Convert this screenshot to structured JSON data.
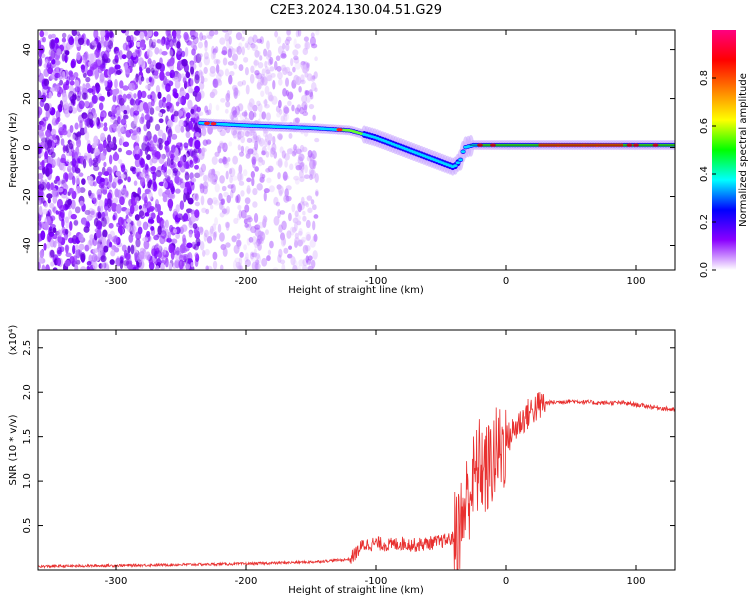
{
  "title": "C2E3.2024.130.04.51.G29",
  "chart_data": [
    {
      "type": "heatmap",
      "xlabel": "Height of straight line (km)",
      "ylabel": "Frequency (Hz)",
      "xlim": [
        -360,
        130
      ],
      "ylim": [
        -50,
        48
      ],
      "x_ticks": [
        -300,
        -200,
        -100,
        0,
        100
      ],
      "x_tick_labels": [
        "-300",
        "-200",
        "-100",
        "0",
        "100"
      ],
      "y_ticks": [
        -40,
        -20,
        0,
        20,
        40
      ],
      "y_tick_labels": [
        "-40",
        "-20",
        "0",
        "20",
        "40"
      ],
      "colorbar": {
        "label": "Normalized spectral amplitude",
        "range": [
          0,
          1
        ],
        "ticks": [
          0.0,
          0.2,
          0.4,
          0.6,
          0.8
        ],
        "tick_labels": [
          "0.0",
          "0.2",
          "0.4",
          "0.6",
          "0.8"
        ],
        "colormap": [
          "#ffffff",
          "#8a00ff",
          "#0000ff",
          "#00ffff",
          "#00ff00",
          "#ffff00",
          "#ff8000",
          "#ff0000",
          "#ff0080"
        ]
      },
      "ridge": {
        "x": [
          -235,
          -200,
          -150,
          -120,
          -100,
          -80,
          -60,
          -50,
          -40,
          -35,
          -32,
          -25,
          0,
          50,
          100,
          130
        ],
        "y": [
          10,
          9,
          8,
          7,
          4,
          0,
          -4,
          -6,
          -8,
          -5,
          0,
          1,
          1,
          1,
          1,
          1
        ]
      },
      "noise_regions": [
        {
          "x_range": [
            -360,
            -235
          ],
          "y_range": [
            -50,
            48
          ],
          "density": "high"
        },
        {
          "x_range": [
            -235,
            -145
          ],
          "y_range": [
            -50,
            48
          ],
          "density": "medium"
        }
      ]
    },
    {
      "type": "line",
      "xlabel": "Height of straight line (km)",
      "ylabel": "SNR (10 * v/v)",
      "y_multiplier": "(x10⁴)",
      "xlim": [
        -360,
        130
      ],
      "ylim": [
        0,
        2.7
      ],
      "x_ticks": [
        -300,
        -200,
        -100,
        0,
        100
      ],
      "x_tick_labels": [
        "-300",
        "-200",
        "-100",
        "0",
        "100"
      ],
      "y_ticks": [
        0.5,
        1.0,
        1.5,
        2.0,
        2.5
      ],
      "y_tick_labels": [
        "0.5",
        "1.0",
        "1.5",
        "2.0",
        "2.5"
      ],
      "series": [
        {
          "color": "#e8302f",
          "x": [
            -360,
            -300,
            -250,
            -200,
            -150,
            -120,
            -110,
            -100,
            -90,
            -80,
            -70,
            -60,
            -50,
            -40,
            -35,
            -30,
            -25,
            -20,
            -15,
            -10,
            0,
            10,
            20,
            30,
            50,
            70,
            90,
            110,
            130
          ],
          "y": [
            0.04,
            0.05,
            0.06,
            0.07,
            0.09,
            0.12,
            0.28,
            0.3,
            0.28,
            0.3,
            0.28,
            0.3,
            0.32,
            0.36,
            0.5,
            0.8,
            1.0,
            1.2,
            1.1,
            1.25,
            1.45,
            1.65,
            1.8,
            1.88,
            1.9,
            1.88,
            1.88,
            1.84,
            1.8
          ]
        }
      ]
    }
  ]
}
